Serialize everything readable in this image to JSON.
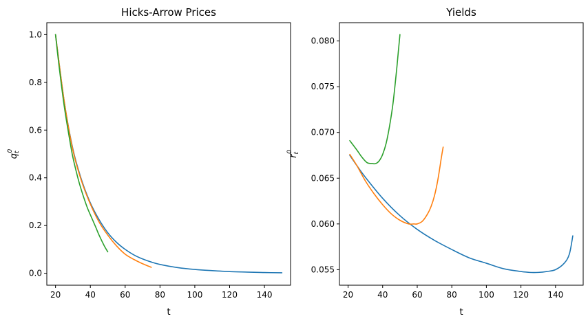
{
  "chart_data": [
    {
      "type": "line",
      "title": "Hicks-Arrow Prices",
      "xlabel": "t",
      "ylabel_base": "q",
      "ylabel_sub": "t",
      "ylabel_sup": "0",
      "xlim": [
        15,
        155
      ],
      "ylim": [
        -0.05,
        1.05
      ],
      "xticks": [
        20,
        40,
        60,
        80,
        100,
        120,
        140
      ],
      "yticks": [
        0.0,
        0.2,
        0.4,
        0.6,
        0.8,
        1.0
      ],
      "ytick_decimals": 1,
      "grid": false,
      "series": [
        {
          "color": "#1f77b4",
          "x": [
            20,
            25,
            30,
            35,
            40,
            45,
            50,
            55,
            60,
            65,
            70,
            75,
            80,
            90,
            100,
            110,
            120,
            130,
            140,
            150
          ],
          "y": [
            1.0,
            0.72,
            0.52,
            0.39,
            0.295,
            0.225,
            0.17,
            0.13,
            0.1,
            0.077,
            0.06,
            0.047,
            0.037,
            0.024,
            0.016,
            0.011,
            0.007,
            0.005,
            0.003,
            0.002
          ]
        },
        {
          "color": "#ff7f0e",
          "x": [
            20,
            25,
            30,
            35,
            40,
            45,
            50,
            55,
            60,
            65,
            70,
            75
          ],
          "y": [
            1.0,
            0.72,
            0.515,
            0.385,
            0.29,
            0.215,
            0.16,
            0.115,
            0.08,
            0.058,
            0.04,
            0.025
          ]
        },
        {
          "color": "#2ca02c",
          "x": [
            20,
            22,
            25,
            28,
            30,
            33,
            35,
            38,
            40,
            43,
            45,
            48,
            50
          ],
          "y": [
            1.0,
            0.87,
            0.7,
            0.565,
            0.485,
            0.395,
            0.345,
            0.28,
            0.245,
            0.195,
            0.16,
            0.115,
            0.09
          ]
        }
      ]
    },
    {
      "type": "line",
      "title": "Yields",
      "xlabel": "t",
      "ylabel_base": "r",
      "ylabel_sub": "t",
      "ylabel_sup": "0",
      "xlim": [
        15,
        156
      ],
      "ylim": [
        0.0533,
        0.082
      ],
      "xticks": [
        20,
        40,
        60,
        80,
        100,
        120,
        140
      ],
      "yticks": [
        0.055,
        0.06,
        0.065,
        0.07,
        0.075,
        0.08
      ],
      "ytick_decimals": 3,
      "grid": false,
      "series": [
        {
          "color": "#1f77b4",
          "x": [
            21,
            25,
            30,
            40,
            50,
            60,
            70,
            80,
            90,
            100,
            110,
            120,
            125,
            130,
            135,
            140,
            145,
            148,
            150
          ],
          "y": [
            0.0675,
            0.0664,
            0.0651,
            0.0628,
            0.0609,
            0.0594,
            0.0582,
            0.0572,
            0.0563,
            0.0557,
            0.0551,
            0.0548,
            0.0547,
            0.0547,
            0.0548,
            0.055,
            0.0557,
            0.0567,
            0.0587
          ]
        },
        {
          "color": "#ff7f0e",
          "x": [
            21,
            25,
            30,
            35,
            40,
            45,
            50,
            55,
            58,
            60,
            63,
            66,
            68,
            70,
            72,
            74,
            75
          ],
          "y": [
            0.0676,
            0.0664,
            0.0647,
            0.0633,
            0.0621,
            0.0611,
            0.0604,
            0.06,
            0.06,
            0.06,
            0.0603,
            0.0611,
            0.0619,
            0.0631,
            0.0649,
            0.0673,
            0.0684
          ]
        },
        {
          "color": "#2ca02c",
          "x": [
            21,
            25,
            28,
            31,
            34,
            36,
            38,
            40,
            42,
            44,
            46,
            48,
            49,
            50
          ],
          "y": [
            0.0691,
            0.0681,
            0.0673,
            0.0667,
            0.0666,
            0.0666,
            0.0669,
            0.0676,
            0.0688,
            0.0707,
            0.0732,
            0.0767,
            0.0787,
            0.0807
          ]
        }
      ]
    }
  ]
}
